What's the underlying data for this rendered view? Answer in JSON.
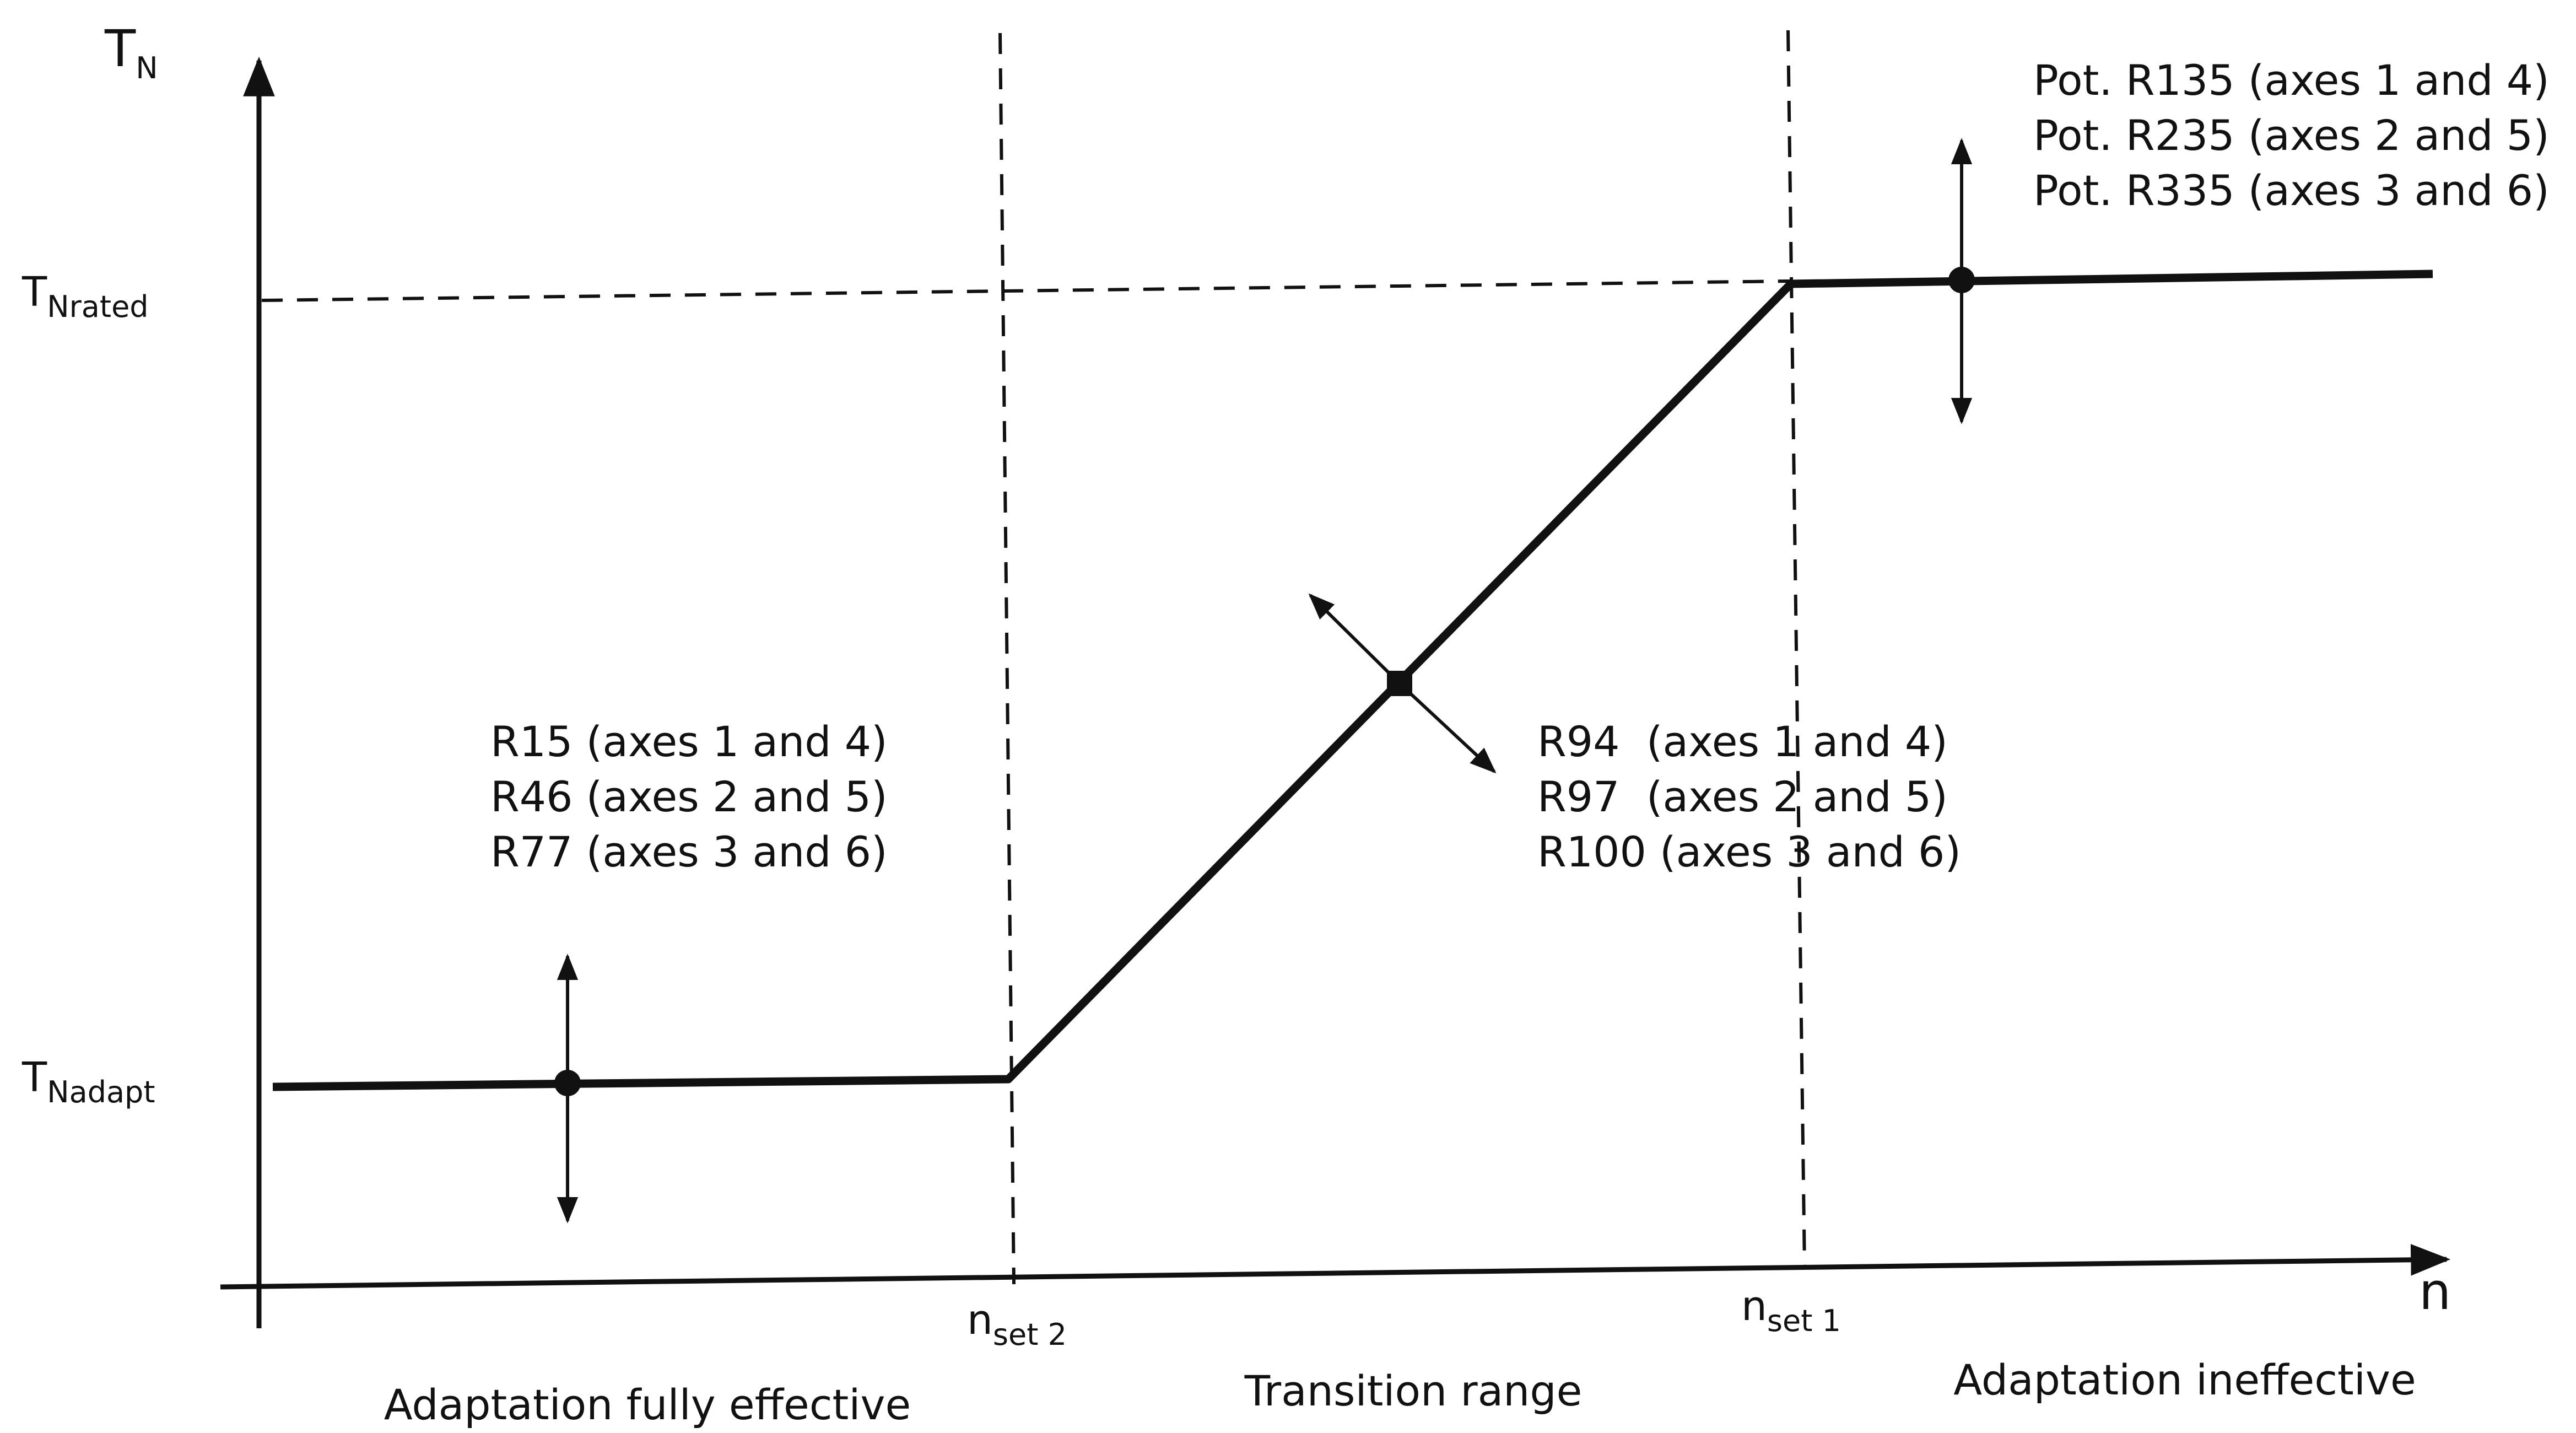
{
  "axes": {
    "y_label_main": "T",
    "y_label_sub": "N",
    "x_label": "n"
  },
  "levels": {
    "rated_main": "T",
    "rated_sub": "Nrated",
    "adapt_main": "T",
    "adapt_sub": "Nadapt"
  },
  "speeds": {
    "set2_main": "n",
    "set2_sub": "set 2",
    "set1_main": "n",
    "set1_sub": "set 1"
  },
  "regions": {
    "left": "Adaptation fully effective",
    "middle": "Transition range",
    "right": "Adaptation ineffective"
  },
  "param_groups": {
    "adapt_level": [
      "R15 (axes 1 and 4)",
      "R46 (axes 2 and 5)",
      "R77 (axes 3 and 6)"
    ],
    "transition": [
      "R94  (axes 1 and 4)",
      "R97  (axes 2 and 5)",
      "R100 (axes 3 and 6)"
    ],
    "rated_level": [
      "Pot. R135 (axes 1 and 4)",
      "Pot. R235 (axes 2 and 5)",
      "Pot. R335 (axes 3 and 6)"
    ]
  },
  "colors": {
    "ink": "#111111",
    "background": "#ffffff"
  }
}
